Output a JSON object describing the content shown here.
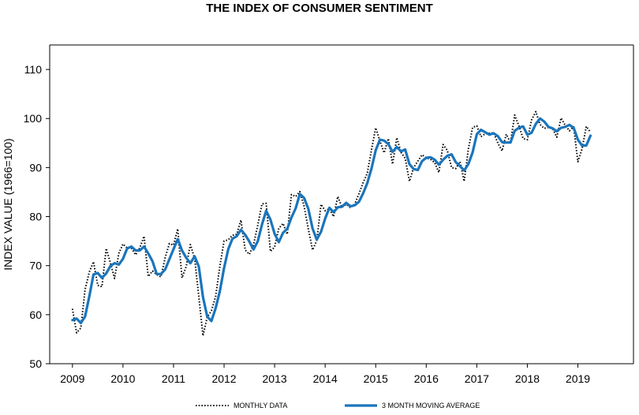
{
  "chart_data": {
    "type": "line",
    "title": "THE INDEX OF CONSUMER SENTIMENT",
    "ylabel": "INDEX VALUE (1966=100)",
    "xlabel": "",
    "xlim": [
      2008.55,
      2020.1
    ],
    "ylim": [
      50,
      115
    ],
    "y_ticks": [
      50,
      60,
      70,
      80,
      90,
      100,
      110
    ],
    "x_ticks": [
      2009,
      2010,
      2011,
      2012,
      2013,
      2014,
      2015,
      2016,
      2017,
      2018,
      2019
    ],
    "grid": false,
    "legend_position": "bottom",
    "series": [
      {
        "name": "MONTHLY DATA",
        "style": "dotted",
        "color": "#000000",
        "x": [
          2009.0,
          2009.083,
          2009.167,
          2009.25,
          2009.333,
          2009.417,
          2009.5,
          2009.583,
          2009.667,
          2009.75,
          2009.833,
          2009.917,
          2010.0,
          2010.083,
          2010.167,
          2010.25,
          2010.333,
          2010.417,
          2010.5,
          2010.583,
          2010.667,
          2010.75,
          2010.833,
          2010.917,
          2011.0,
          2011.083,
          2011.167,
          2011.25,
          2011.333,
          2011.417,
          2011.5,
          2011.583,
          2011.667,
          2011.75,
          2011.833,
          2011.917,
          2012.0,
          2012.083,
          2012.167,
          2012.25,
          2012.333,
          2012.417,
          2012.5,
          2012.583,
          2012.667,
          2012.75,
          2012.833,
          2012.917,
          2013.0,
          2013.083,
          2013.167,
          2013.25,
          2013.333,
          2013.417,
          2013.5,
          2013.583,
          2013.667,
          2013.75,
          2013.833,
          2013.917,
          2014.0,
          2014.083,
          2014.167,
          2014.25,
          2014.333,
          2014.417,
          2014.5,
          2014.583,
          2014.667,
          2014.75,
          2014.833,
          2014.917,
          2015.0,
          2015.083,
          2015.167,
          2015.25,
          2015.333,
          2015.417,
          2015.5,
          2015.583,
          2015.667,
          2015.75,
          2015.833,
          2015.917,
          2016.0,
          2016.083,
          2016.167,
          2016.25,
          2016.333,
          2016.417,
          2016.5,
          2016.583,
          2016.667,
          2016.75,
          2016.833,
          2016.917,
          2017.0,
          2017.083,
          2017.167,
          2017.25,
          2017.333,
          2017.417,
          2017.5,
          2017.583,
          2017.667,
          2017.75,
          2017.833,
          2017.917,
          2018.0,
          2018.083,
          2018.167,
          2018.25,
          2018.333,
          2018.417,
          2018.5,
          2018.583,
          2018.667,
          2018.75,
          2018.833,
          2018.917,
          2019.0,
          2019.083,
          2019.167,
          2019.25
        ],
        "values": [
          61.2,
          56.3,
          57.3,
          65.1,
          68.7,
          70.8,
          66.0,
          65.7,
          73.5,
          70.6,
          67.4,
          72.5,
          74.4,
          73.6,
          73.6,
          72.2,
          73.6,
          76.0,
          67.8,
          68.9,
          68.2,
          67.7,
          71.6,
          74.5,
          74.2,
          77.5,
          67.5,
          69.8,
          74.3,
          71.5,
          63.7,
          55.7,
          59.5,
          60.8,
          63.7,
          69.9,
          75.0,
          75.3,
          76.2,
          76.4,
          79.3,
          73.2,
          72.3,
          74.3,
          78.3,
          82.6,
          82.7,
          72.9,
          73.8,
          77.6,
          78.6,
          76.4,
          84.5,
          84.1,
          85.1,
          82.1,
          77.5,
          73.2,
          75.1,
          82.5,
          81.2,
          81.6,
          80.0,
          84.1,
          81.9,
          82.5,
          81.8,
          82.5,
          84.6,
          86.9,
          88.8,
          93.6,
          98.1,
          95.4,
          93.0,
          95.9,
          90.7,
          96.1,
          93.1,
          91.9,
          87.2,
          90.0,
          91.3,
          92.6,
          92.0,
          91.7,
          91.0,
          89.0,
          94.7,
          93.5,
          90.0,
          89.8,
          91.2,
          87.2,
          93.8,
          98.2,
          98.5,
          96.3,
          96.9,
          97.0,
          97.1,
          95.0,
          93.4,
          96.8,
          95.1,
          100.7,
          98.5,
          95.9,
          95.7,
          99.7,
          101.4,
          98.8,
          98.0,
          98.2,
          97.9,
          96.2,
          100.1,
          98.6,
          97.5,
          98.3,
          91.2,
          93.8,
          98.4,
          97.2
        ]
      },
      {
        "name": "3 MONTH MOVING AVERAGE",
        "style": "solid",
        "color": "#1a75bc",
        "x": [
          2009.0,
          2009.083,
          2009.167,
          2009.25,
          2009.333,
          2009.417,
          2009.5,
          2009.583,
          2009.667,
          2009.75,
          2009.833,
          2009.917,
          2010.0,
          2010.083,
          2010.167,
          2010.25,
          2010.333,
          2010.417,
          2010.5,
          2010.583,
          2010.667,
          2010.75,
          2010.833,
          2010.917,
          2011.0,
          2011.083,
          2011.167,
          2011.25,
          2011.333,
          2011.417,
          2011.5,
          2011.583,
          2011.667,
          2011.75,
          2011.833,
          2011.917,
          2012.0,
          2012.083,
          2012.167,
          2012.25,
          2012.333,
          2012.417,
          2012.5,
          2012.583,
          2012.667,
          2012.75,
          2012.833,
          2012.917,
          2013.0,
          2013.083,
          2013.167,
          2013.25,
          2013.333,
          2013.417,
          2013.5,
          2013.583,
          2013.667,
          2013.75,
          2013.833,
          2013.917,
          2014.0,
          2014.083,
          2014.167,
          2014.25,
          2014.333,
          2014.417,
          2014.5,
          2014.583,
          2014.667,
          2014.75,
          2014.833,
          2014.917,
          2015.0,
          2015.083,
          2015.167,
          2015.25,
          2015.333,
          2015.417,
          2015.5,
          2015.583,
          2015.667,
          2015.75,
          2015.833,
          2015.917,
          2016.0,
          2016.083,
          2016.167,
          2016.25,
          2016.333,
          2016.417,
          2016.5,
          2016.583,
          2016.667,
          2016.75,
          2016.833,
          2016.917,
          2017.0,
          2017.083,
          2017.167,
          2017.25,
          2017.333,
          2017.417,
          2017.5,
          2017.583,
          2017.667,
          2017.75,
          2017.833,
          2017.917,
          2018.0,
          2018.083,
          2018.167,
          2018.25,
          2018.333,
          2018.417,
          2018.5,
          2018.583,
          2018.667,
          2018.75,
          2018.833,
          2018.917,
          2019.0,
          2019.083,
          2019.167,
          2019.25
        ],
        "values": [
          58.9,
          59.2,
          58.3,
          59.6,
          63.7,
          68.2,
          68.5,
          67.5,
          68.4,
          69.9,
          70.5,
          70.2,
          71.4,
          73.5,
          73.9,
          73.1,
          73.1,
          73.9,
          72.5,
          70.9,
          68.3,
          68.3,
          69.2,
          71.3,
          73.4,
          75.4,
          73.1,
          71.6,
          70.5,
          71.9,
          69.8,
          63.6,
          59.6,
          58.7,
          61.3,
          64.8,
          69.5,
          73.4,
          75.5,
          76.0,
          77.3,
          76.3,
          74.9,
          73.3,
          75.0,
          78.4,
          81.2,
          79.4,
          76.5,
          74.8,
          76.7,
          77.5,
          79.8,
          81.7,
          84.6,
          83.8,
          81.6,
          77.6,
          75.3,
          76.9,
          79.6,
          81.8,
          80.9,
          81.9,
          82.0,
          82.8,
          82.1,
          82.3,
          83.0,
          84.7,
          86.8,
          89.8,
          93.5,
          95.7,
          95.5,
          94.8,
          93.2,
          94.2,
          93.3,
          93.7,
          90.7,
          89.7,
          89.5,
          91.3,
          92.0,
          92.1,
          91.6,
          90.6,
          91.6,
          92.4,
          92.7,
          91.1,
          90.3,
          89.4,
          90.7,
          93.1,
          96.8,
          97.7,
          97.2,
          96.7,
          97.0,
          96.4,
          95.2,
          95.1,
          95.1,
          97.5,
          98.1,
          98.4,
          96.7,
          97.1,
          98.9,
          100.0,
          99.4,
          98.3,
          98.0,
          97.4,
          98.1,
          98.3,
          98.7,
          98.1,
          95.7,
          94.5,
          94.5,
          96.5
        ]
      }
    ]
  }
}
